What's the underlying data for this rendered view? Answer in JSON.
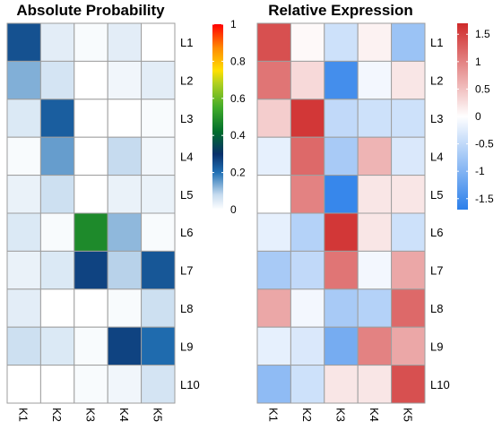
{
  "chart_data": [
    {
      "type": "heatmap",
      "title": "Absolute Probability",
      "columns": [
        "K1",
        "K2",
        "K3",
        "K4",
        "K5"
      ],
      "rows": [
        "L1",
        "L2",
        "L3",
        "L4",
        "L5",
        "L6",
        "L7",
        "L8",
        "L9",
        "L10"
      ],
      "values": [
        [
          0.25,
          0.04,
          0.01,
          0.04,
          0.0
        ],
        [
          0.13,
          0.06,
          0.0,
          0.02,
          0.04
        ],
        [
          0.05,
          0.23,
          0.0,
          0.0,
          0.01
        ],
        [
          0.01,
          0.15,
          0.0,
          0.08,
          0.02
        ],
        [
          0.03,
          0.07,
          0.0,
          0.03,
          0.03
        ],
        [
          0.05,
          0.01,
          0.48,
          0.12,
          0.01
        ],
        [
          0.03,
          0.05,
          0.27,
          0.09,
          0.24
        ],
        [
          0.04,
          0.0,
          0.0,
          0.01,
          0.07
        ],
        [
          0.07,
          0.05,
          0.01,
          0.27,
          0.21
        ],
        [
          0.0,
          0.0,
          0.01,
          0.02,
          0.06
        ]
      ],
      "colorbar": {
        "ticks": [
          "1",
          "0.8",
          "0.6",
          "0.4",
          "0.2",
          "0"
        ],
        "tick_values": [
          1,
          0.8,
          0.6,
          0.4,
          0.2,
          0
        ],
        "range": [
          0,
          1
        ],
        "scale": "multi: white-blue-navy-green-yellow-orange-red"
      },
      "grid": true
    },
    {
      "type": "heatmap",
      "title": "Relative Expression",
      "columns": [
        "K1",
        "K2",
        "K3",
        "K4",
        "K5"
      ],
      "rows": [
        "L1",
        "L2",
        "L3",
        "L4",
        "L5",
        "L6",
        "L7",
        "L8",
        "L9",
        "L10"
      ],
      "values": [
        [
          1.4,
          0.05,
          -0.4,
          0.1,
          -0.8
        ],
        [
          1.1,
          0.3,
          -1.5,
          -0.1,
          0.2
        ],
        [
          0.4,
          1.6,
          -0.5,
          -0.4,
          -0.4
        ],
        [
          -0.2,
          1.2,
          -0.7,
          0.6,
          -0.3
        ],
        [
          0.0,
          1.0,
          -1.6,
          0.2,
          0.2
        ],
        [
          -0.2,
          -0.6,
          1.6,
          0.2,
          -0.4
        ],
        [
          -0.7,
          -0.5,
          1.1,
          -0.1,
          0.7
        ],
        [
          0.7,
          -0.1,
          -0.7,
          -0.6,
          1.2
        ],
        [
          -0.2,
          -0.3,
          -1.1,
          1.0,
          0.7
        ],
        [
          -0.9,
          -0.4,
          0.2,
          0.2,
          1.4
        ]
      ],
      "colorbar": {
        "ticks": [
          "1.5",
          "1",
          "0.5",
          "0",
          "-0.5",
          "-1",
          "-1.5"
        ],
        "tick_values": [
          1.5,
          1,
          0.5,
          0,
          -0.5,
          -1,
          -1.5
        ],
        "range": [
          -1.7,
          1.7
        ],
        "scale": "diverging: blue-white-red"
      },
      "grid": true
    }
  ],
  "colors": {
    "grid": "#9e9e9e",
    "abs_scale": [
      "#ffffff",
      "#08306b",
      "#006d2c",
      "#41ab2a",
      "#ffe000",
      "#ff8c00",
      "#ff0000"
    ],
    "rel_scale": [
      "#2b7fea",
      "#ffffff",
      "#cf2a2a"
    ]
  }
}
